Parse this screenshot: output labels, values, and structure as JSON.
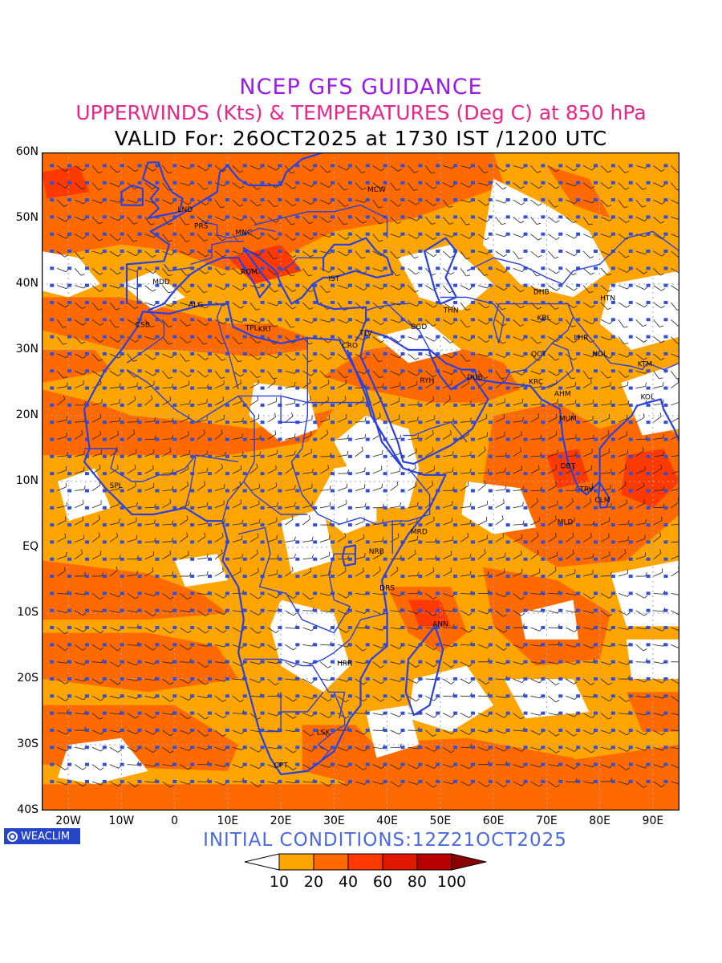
{
  "title": "NCEP GFS GUIDANCE",
  "subtitle": "UPPERWINDS (Kts) & TEMPERATURES (Deg C) at 850 hPa",
  "valid": "VALID For: 26OCT2025 at 1730 IST /1200 UTC",
  "initial_conditions": "INITIAL CONDITIONS:12Z21OCT2025",
  "brand": "WEACLIM",
  "lat_labels": [
    "60N",
    "50N",
    "40N",
    "30N",
    "20N",
    "10N",
    "EQ",
    "10S",
    "20S",
    "30S",
    "40S"
  ],
  "lon_labels": [
    "20W",
    "10W",
    "0",
    "10E",
    "20E",
    "30E",
    "40E",
    "50E",
    "60E",
    "70E",
    "80E",
    "90E"
  ],
  "legend": {
    "labels": [
      "10",
      "20",
      "40",
      "60",
      "80",
      "100"
    ],
    "colors": [
      "#ffffff",
      "#ffa500",
      "#ff6a00",
      "#ff3a00",
      "#e01800",
      "#b80000",
      "#8a0000"
    ]
  },
  "colors": {
    "coast": "#2a40e0",
    "light": "#ffa500",
    "dark": "#ff6a00",
    "red": "#ff3a00",
    "title1": "#9b1be8",
    "title2": "#e8278a"
  },
  "stations": [
    {
      "code": "MCW",
      "lon": 38,
      "lat": 54
    },
    {
      "code": "LND",
      "lon": 2,
      "lat": 51
    },
    {
      "code": "PRS",
      "lon": 5,
      "lat": 48.5
    },
    {
      "code": "MNC",
      "lon": 13,
      "lat": 47.5
    },
    {
      "code": "ROM",
      "lon": 14,
      "lat": 41.5
    },
    {
      "code": "MDD",
      "lon": -2.5,
      "lat": 40
    },
    {
      "code": "IST",
      "lon": 30,
      "lat": 40.5
    },
    {
      "code": "ALG",
      "lon": 4,
      "lat": 36.5
    },
    {
      "code": "CSB",
      "lon": -6,
      "lat": 33.5
    },
    {
      "code": "TPL",
      "lon": 14.5,
      "lat": 33
    },
    {
      "code": "KRT",
      "lon": 17,
      "lat": 32.8
    },
    {
      "code": "CRO",
      "lon": 33,
      "lat": 30.3
    },
    {
      "code": "TLV",
      "lon": 36,
      "lat": 32.2
    },
    {
      "code": "BGD",
      "lon": 46,
      "lat": 33.2
    },
    {
      "code": "THN",
      "lon": 52,
      "lat": 35.7
    },
    {
      "code": "DHB",
      "lon": 69,
      "lat": 38.5
    },
    {
      "code": "KBL",
      "lon": 69.5,
      "lat": 34.5
    },
    {
      "code": "HTN",
      "lon": 81.5,
      "lat": 37.5
    },
    {
      "code": "LHR",
      "lon": 76.5,
      "lat": 31.5
    },
    {
      "code": "QCT",
      "lon": 68.5,
      "lat": 29
    },
    {
      "code": "NDL",
      "lon": 80,
      "lat": 29
    },
    {
      "code": "KTM",
      "lon": 88.5,
      "lat": 27.5
    },
    {
      "code": "RYH",
      "lon": 47.5,
      "lat": 25
    },
    {
      "code": "DUB",
      "lon": 56.5,
      "lat": 25.5
    },
    {
      "code": "KRC",
      "lon": 68,
      "lat": 24.8
    },
    {
      "code": "AHM",
      "lon": 73,
      "lat": 23
    },
    {
      "code": "KOL",
      "lon": 89,
      "lat": 22.5
    },
    {
      "code": "MUM",
      "lon": 74,
      "lat": 19.2
    },
    {
      "code": "DBT",
      "lon": 74,
      "lat": 12
    },
    {
      "code": "SPL",
      "lon": -11,
      "lat": 9
    },
    {
      "code": "TRV",
      "lon": 77.5,
      "lat": 8.5
    },
    {
      "code": "CLM",
      "lon": 80.5,
      "lat": 6.8
    },
    {
      "code": "MLD",
      "lon": 73.5,
      "lat": 3.5
    },
    {
      "code": "MRD",
      "lon": 46,
      "lat": 2
    },
    {
      "code": "NRB",
      "lon": 38,
      "lat": -1
    },
    {
      "code": "DRS",
      "lon": 40,
      "lat": -6.5
    },
    {
      "code": "ANN",
      "lon": 50,
      "lat": -12
    },
    {
      "code": "HRR",
      "lon": 32,
      "lat": -18
    },
    {
      "code": "LSK",
      "lon": 28,
      "lat": -28.5
    },
    {
      "code": "CPT",
      "lon": 20,
      "lat": -33.5
    }
  ]
}
